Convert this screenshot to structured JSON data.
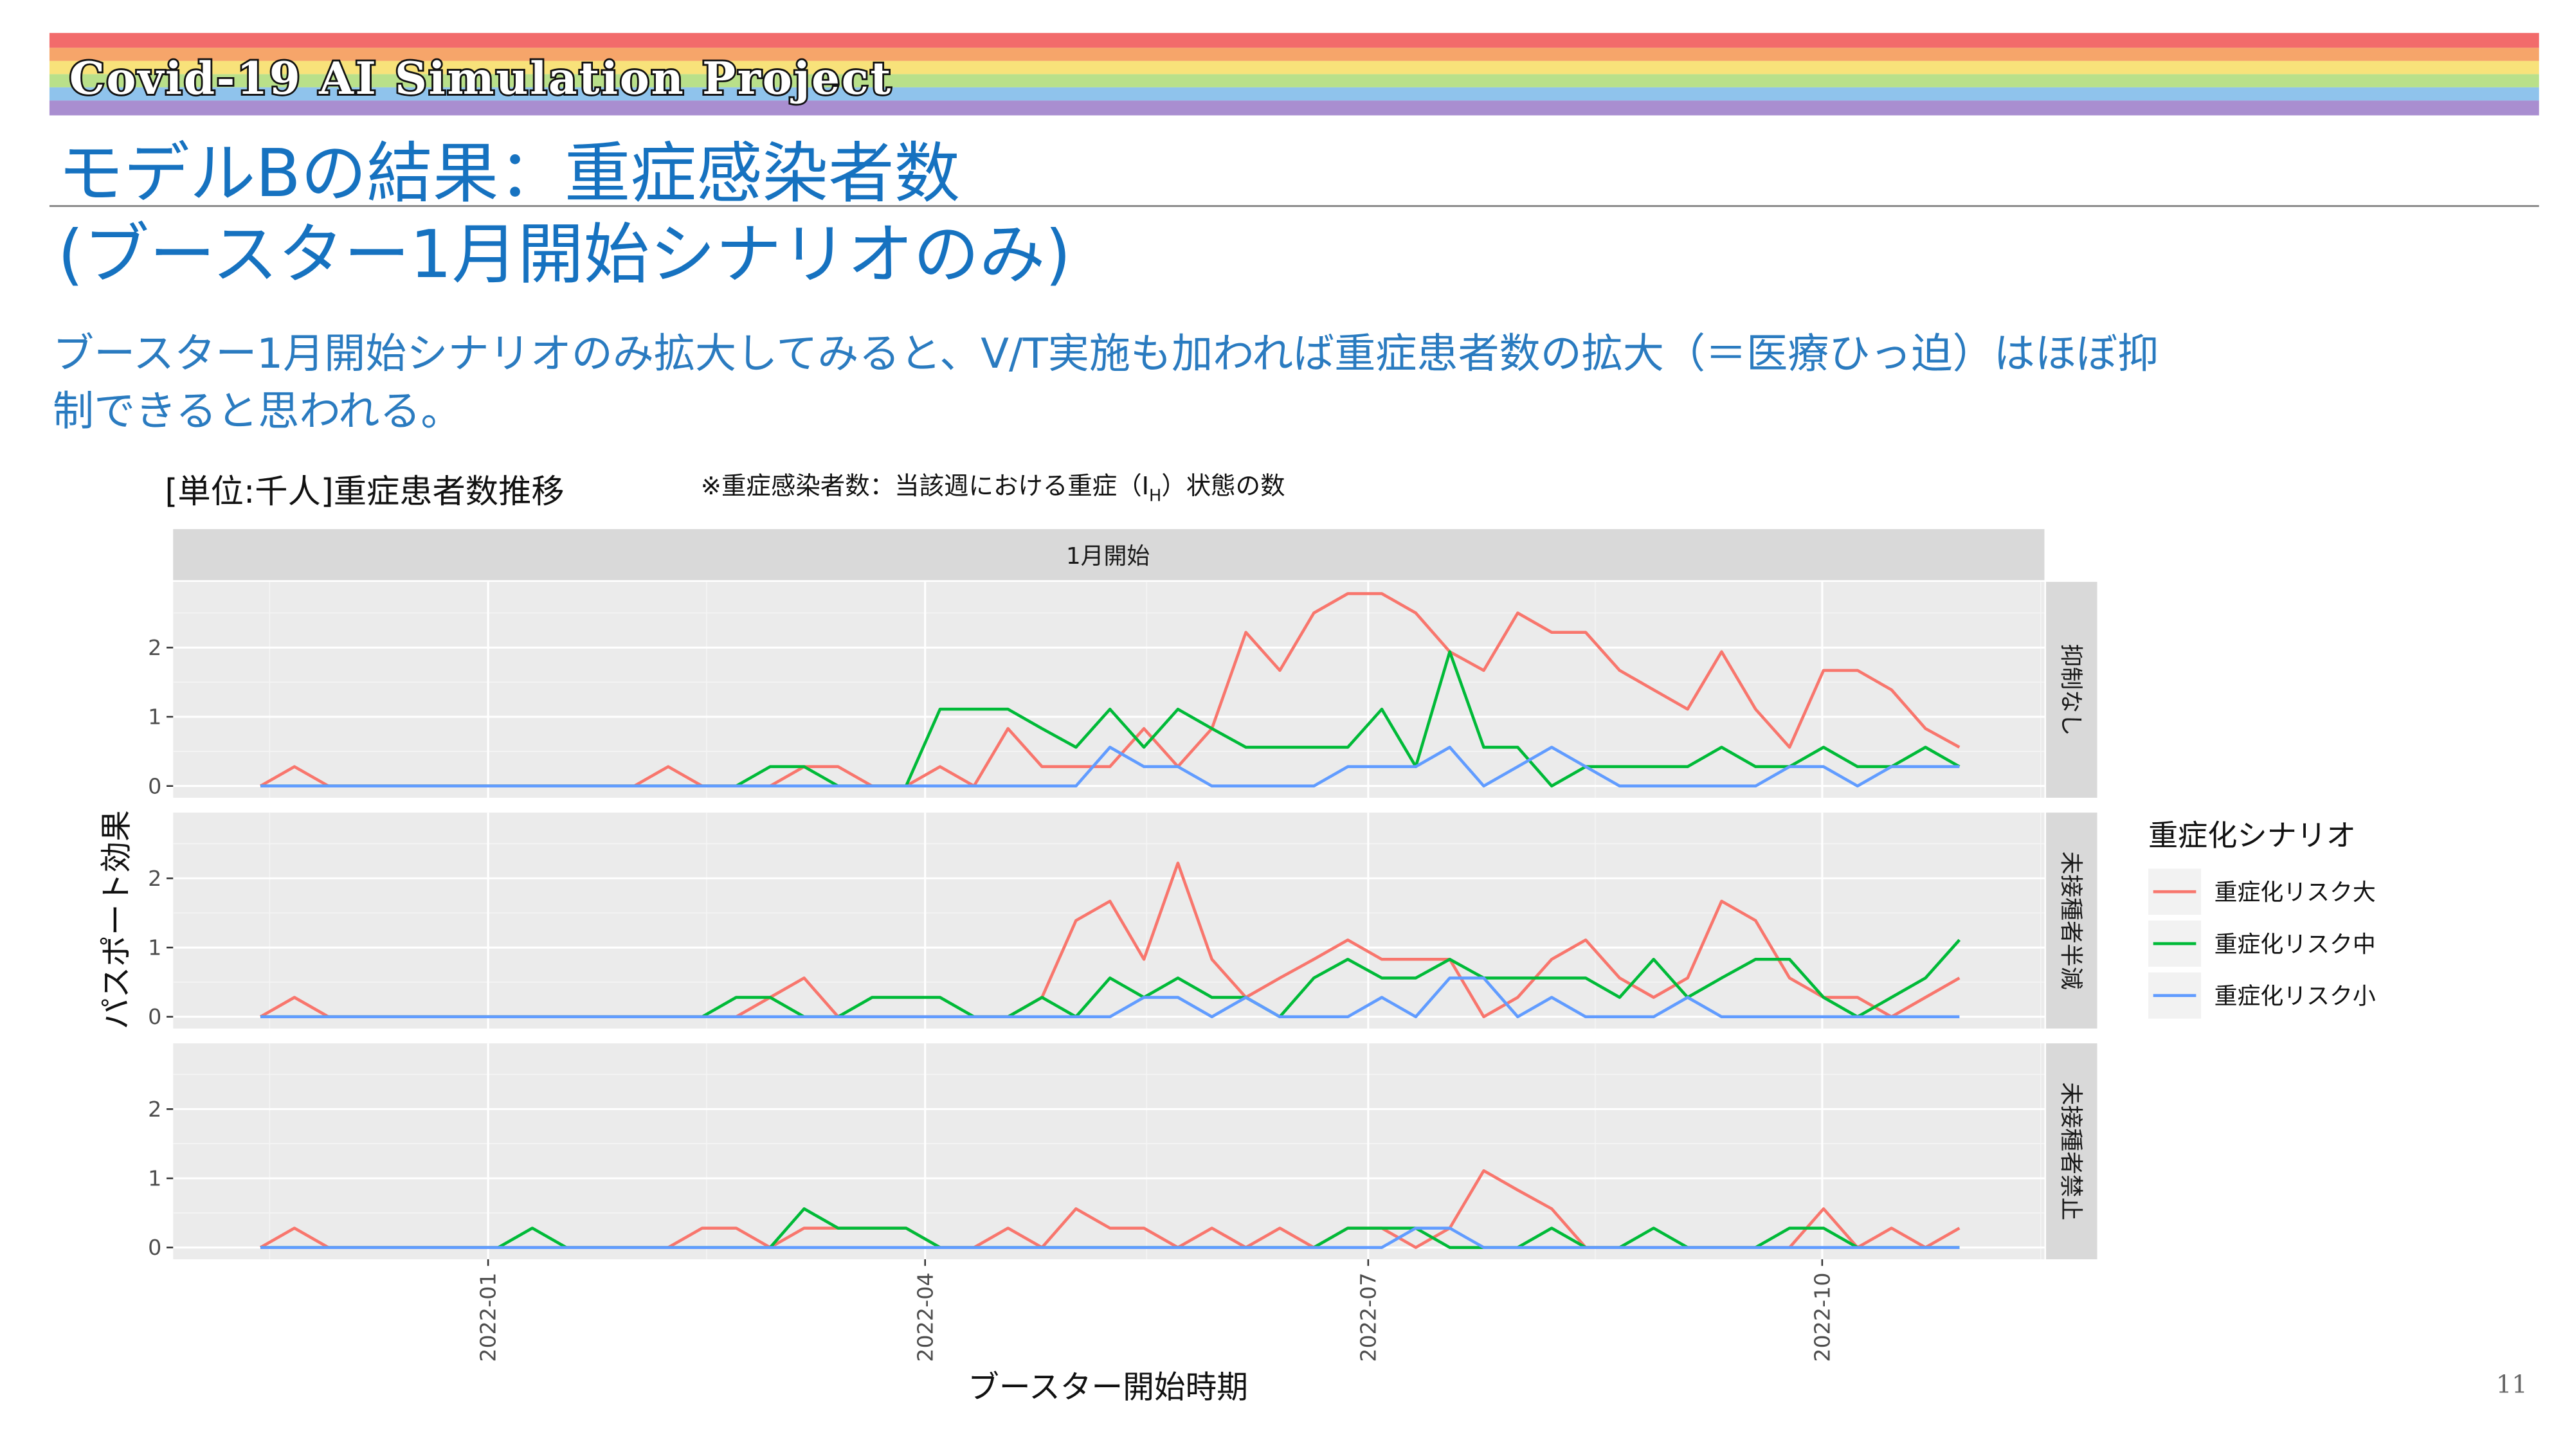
{
  "header": {
    "title": "Covid-19 AI Simulation Project"
  },
  "slide": {
    "title_lines": [
      "モデルBの結果：重症感染者数",
      "(ブースター1月開始シナリオのみ)"
    ],
    "body_lines": [
      "ブースター1月開始シナリオのみ拡大してみると、V/T実施も加われば重症患者数の拡大（＝医療ひっ迫）はほぼ抑",
      "制できると思われる。"
    ],
    "page_number": "11"
  },
  "chart_data": {
    "type": "line",
    "title": "[単位:千人]重症患者数推移",
    "note": [
      "※重症感染者数：当該週における重症（I",
      "H",
      "）状態の数"
    ],
    "facet_title": "1月開始",
    "xlabel": "ブースター開始時期",
    "ylabel": "パスポート効果",
    "legend_title": "重症化シナリオ",
    "grid": true,
    "series": [
      {
        "name": "重症化リスク大",
        "color": "#f8766d"
      },
      {
        "name": "重症化リスク中",
        "color": "#00ba38"
      },
      {
        "name": "重症化リスク小",
        "color": "#619cff"
      }
    ],
    "x": [
      0,
      1,
      2,
      3,
      4,
      5,
      6,
      7,
      8,
      9,
      10,
      11,
      12,
      13,
      14,
      15,
      16,
      17,
      18,
      19,
      20,
      21,
      22,
      23,
      24,
      25,
      26,
      27,
      28,
      29,
      30,
      31,
      32,
      33,
      34,
      35,
      36,
      37,
      38,
      39,
      40,
      41,
      42,
      43,
      44,
      45,
      46,
      47,
      48,
      49,
      50
    ],
    "xlim": [
      -2.57,
      52.5
    ],
    "xticks": [
      {
        "value": 6.7,
        "label": "2022-01"
      },
      {
        "value": 19.56,
        "label": "2022-04"
      },
      {
        "value": 32.6,
        "label": "2022-07"
      },
      {
        "value": 45.96,
        "label": "2022-10"
      }
    ],
    "ylim": [
      -0.17,
      2.95
    ],
    "yticks": [
      0,
      1,
      2
    ],
    "panels": [
      {
        "label": "抑制なし",
        "values": [
          [
            0,
            0.28,
            0,
            0,
            0,
            0,
            0,
            0,
            0,
            0,
            0,
            0,
            0.28,
            0,
            0,
            0,
            0.28,
            0.28,
            0,
            0,
            0.28,
            0,
            0.83,
            0.28,
            0.28,
            0.28,
            0.83,
            0.28,
            0.83,
            2.22,
            1.67,
            2.5,
            2.78,
            2.78,
            2.5,
            1.94,
            1.67,
            2.5,
            2.22,
            2.22,
            1.67,
            1.39,
            1.11,
            1.94,
            1.11,
            0.56,
            1.67,
            1.67,
            1.39,
            0.83,
            0.56
          ],
          [
            0,
            0,
            0,
            0,
            0,
            0,
            0,
            0,
            0,
            0,
            0,
            0,
            0,
            0,
            0,
            0.28,
            0.28,
            0,
            0,
            0,
            1.11,
            1.11,
            1.11,
            0.83,
            0.56,
            1.11,
            0.56,
            1.11,
            0.83,
            0.56,
            0.56,
            0.56,
            0.56,
            1.11,
            0.28,
            1.94,
            0.56,
            0.56,
            0,
            0.28,
            0.28,
            0.28,
            0.28,
            0.56,
            0.28,
            0.28,
            0.56,
            0.28,
            0.28,
            0.56,
            0.28
          ],
          [
            0,
            0,
            0,
            0,
            0,
            0,
            0,
            0,
            0,
            0,
            0,
            0,
            0,
            0,
            0,
            0,
            0,
            0,
            0,
            0,
            0,
            0,
            0,
            0,
            0,
            0.56,
            0.28,
            0.28,
            0,
            0,
            0,
            0,
            0.28,
            0.28,
            0.28,
            0.56,
            0,
            0.28,
            0.56,
            0.28,
            0,
            0,
            0,
            0,
            0,
            0.28,
            0.28,
            0,
            0.28,
            0.28,
            0.28
          ]
        ]
      },
      {
        "label": "未接種者半減",
        "values": [
          [
            0,
            0.28,
            0,
            0,
            0,
            0,
            0,
            0,
            0,
            0,
            0,
            0,
            0,
            0,
            0,
            0.28,
            0.56,
            0,
            0,
            0,
            0,
            0,
            0,
            0.28,
            1.39,
            1.67,
            0.83,
            2.22,
            0.83,
            0.28,
            0.56,
            0.83,
            1.11,
            0.83,
            0.83,
            0.83,
            0,
            0.28,
            0.83,
            1.11,
            0.56,
            0.28,
            0.56,
            1.67,
            1.39,
            0.56,
            0.28,
            0.28,
            0,
            0.28,
            0.56
          ],
          [
            0,
            0,
            0,
            0,
            0,
            0,
            0,
            0,
            0,
            0,
            0,
            0,
            0,
            0,
            0.28,
            0.28,
            0,
            0,
            0.28,
            0.28,
            0.28,
            0,
            0,
            0.28,
            0,
            0.56,
            0.28,
            0.56,
            0.28,
            0.28,
            0,
            0.56,
            0.83,
            0.56,
            0.56,
            0.83,
            0.56,
            0.56,
            0.56,
            0.56,
            0.28,
            0.83,
            0.28,
            0.56,
            0.83,
            0.83,
            0.28,
            0,
            0.28,
            0.56,
            1.11
          ],
          [
            0,
            0,
            0,
            0,
            0,
            0,
            0,
            0,
            0,
            0,
            0,
            0,
            0,
            0,
            0,
            0,
            0,
            0,
            0,
            0,
            0,
            0,
            0,
            0,
            0,
            0,
            0.28,
            0.28,
            0,
            0.28,
            0,
            0,
            0,
            0.28,
            0,
            0.56,
            0.56,
            0,
            0.28,
            0,
            0,
            0,
            0.28,
            0,
            0,
            0,
            0,
            0,
            0,
            0,
            0
          ]
        ]
      },
      {
        "label": "未接種者禁止",
        "values": [
          [
            0,
            0.28,
            0,
            0,
            0,
            0,
            0,
            0,
            0,
            0,
            0,
            0,
            0,
            0.28,
            0.28,
            0,
            0.28,
            0.28,
            0.28,
            0.28,
            0,
            0,
            0.28,
            0,
            0.56,
            0.28,
            0.28,
            0,
            0.28,
            0,
            0.28,
            0,
            0.28,
            0.28,
            0,
            0.28,
            1.11,
            0.83,
            0.56,
            0,
            0,
            0,
            0,
            0,
            0,
            0,
            0.56,
            0,
            0.28,
            0,
            0.28
          ],
          [
            0,
            0,
            0,
            0,
            0,
            0,
            0,
            0,
            0.28,
            0,
            0,
            0,
            0,
            0,
            0,
            0,
            0.56,
            0.28,
            0.28,
            0.28,
            0,
            0,
            0,
            0,
            0,
            0,
            0,
            0,
            0,
            0,
            0,
            0,
            0.28,
            0.28,
            0.28,
            0,
            0,
            0,
            0.28,
            0,
            0,
            0.28,
            0,
            0,
            0,
            0.28,
            0.28,
            0,
            0,
            0,
            0
          ],
          [
            0,
            0,
            0,
            0,
            0,
            0,
            0,
            0,
            0,
            0,
            0,
            0,
            0,
            0,
            0,
            0,
            0,
            0,
            0,
            0,
            0,
            0,
            0,
            0,
            0,
            0,
            0,
            0,
            0,
            0,
            0,
            0,
            0,
            0,
            0.28,
            0.28,
            0,
            0,
            0,
            0,
            0,
            0,
            0,
            0,
            0,
            0,
            0,
            0,
            0,
            0,
            0
          ]
        ]
      }
    ]
  }
}
